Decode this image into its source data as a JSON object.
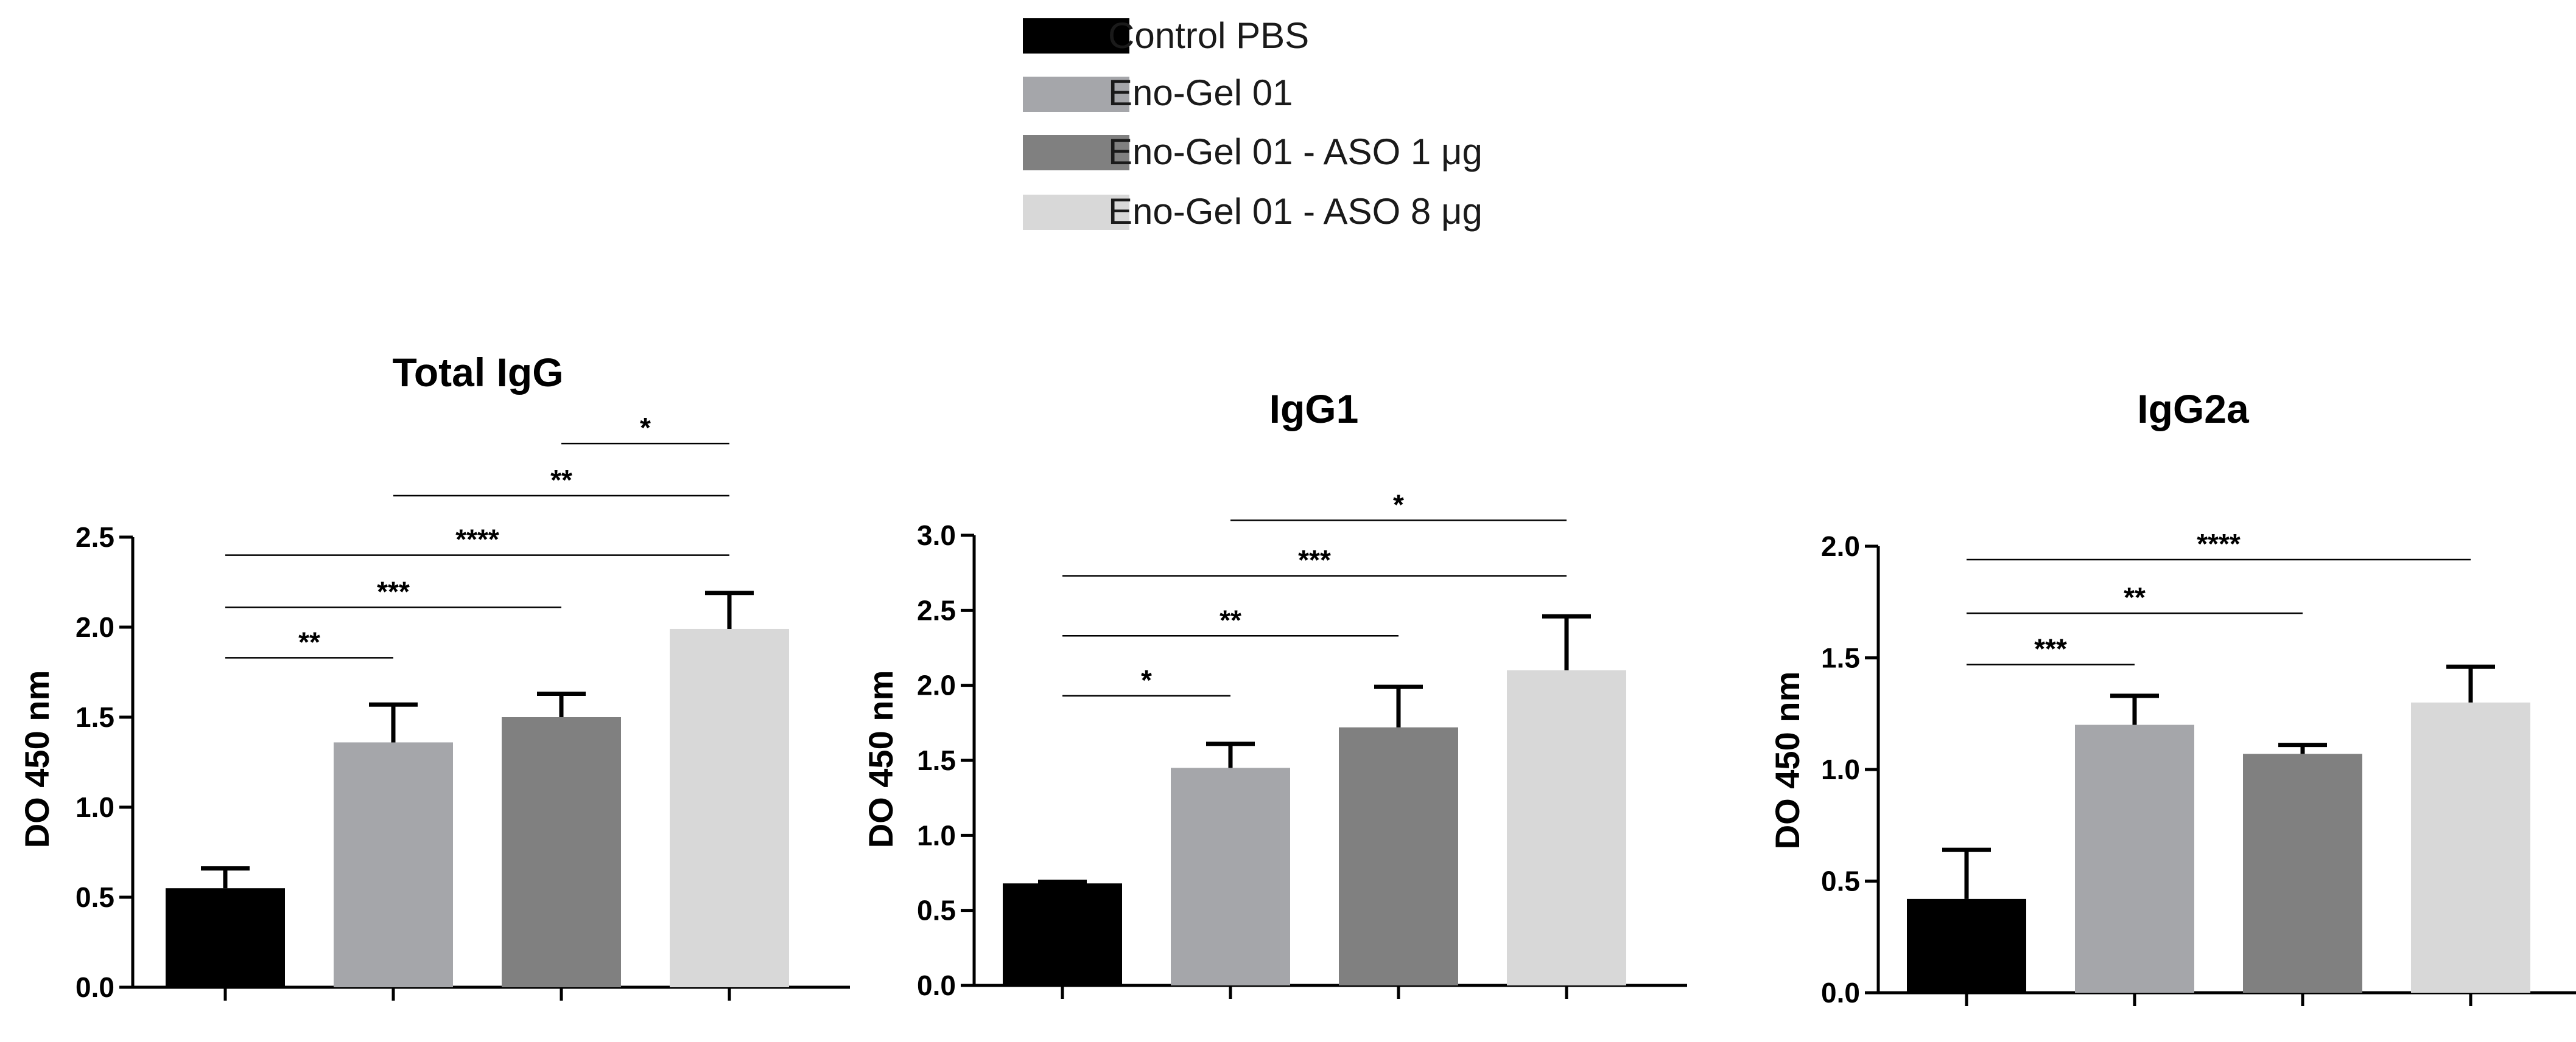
{
  "legend": {
    "items": [
      {
        "label": "Control PBS",
        "color": "#000000"
      },
      {
        "label": "Eno-Gel 01",
        "color": "#a5a6aa"
      },
      {
        "label": "Eno-Gel 01 - ASO 1 μg",
        "color": "#808080"
      },
      {
        "label": "Eno-Gel 01 - ASO 8 μg",
        "color": "#d8d8d8"
      }
    ]
  },
  "chart_data": [
    {
      "type": "bar",
      "title": "Total IgG",
      "ylabel": "DO 450 nm",
      "xlabel": "",
      "ylim": [
        0,
        2.5
      ],
      "yticks": [
        "0.0",
        "0.5",
        "1.0",
        "1.5",
        "2.0",
        "2.5"
      ],
      "categories": [
        "Control PBS",
        "Eno-Gel 01",
        "Eno-Gel 01 - ASO 1 μg",
        "Eno-Gel 01 - ASO 8 μg"
      ],
      "values": [
        0.55,
        1.36,
        1.5,
        1.99
      ],
      "errors": [
        0.11,
        0.21,
        0.13,
        0.2
      ],
      "significance": [
        {
          "from": 0,
          "to": 1,
          "label": "**",
          "y": 1.83
        },
        {
          "from": 0,
          "to": 2,
          "label": "***",
          "y": 2.11
        },
        {
          "from": 0,
          "to": 3,
          "label": "****",
          "y": 2.4
        },
        {
          "from": 1,
          "to": 3,
          "label": "**",
          "y": 2.73
        },
        {
          "from": 2,
          "to": 3,
          "label": "*",
          "y": 3.02
        }
      ]
    },
    {
      "type": "bar",
      "title": "IgG1",
      "ylabel": "DO 450 nm",
      "xlabel": "",
      "ylim": [
        0,
        3.0
      ],
      "yticks": [
        "0.0",
        "0.5",
        "1.0",
        "1.5",
        "2.0",
        "2.5",
        "3.0"
      ],
      "categories": [
        "Control PBS",
        "Eno-Gel 01",
        "Eno-Gel 01 - ASO 1 μg",
        "Eno-Gel 01 - ASO 8 μg"
      ],
      "values": [
        0.68,
        1.45,
        1.72,
        2.1
      ],
      "errors": [
        0.01,
        0.16,
        0.27,
        0.36
      ],
      "significance": [
        {
          "from": 0,
          "to": 1,
          "label": "*",
          "y": 1.93
        },
        {
          "from": 0,
          "to": 2,
          "label": "**",
          "y": 2.33
        },
        {
          "from": 0,
          "to": 3,
          "label": "***",
          "y": 2.73
        },
        {
          "from": 1,
          "to": 3,
          "label": "*",
          "y": 3.1
        }
      ]
    },
    {
      "type": "bar",
      "title": "IgG2a",
      "ylabel": "DO 450 nm",
      "xlabel": "",
      "ylim": [
        0,
        2.0
      ],
      "yticks": [
        "0.0",
        "0.5",
        "1.0",
        "1.5",
        "2.0"
      ],
      "categories": [
        "Control PBS",
        "Eno-Gel 01",
        "Eno-Gel 01 - ASO 1 μg",
        "Eno-Gel 01 - ASO 8 μg"
      ],
      "values": [
        0.42,
        1.2,
        1.07,
        1.3
      ],
      "errors": [
        0.22,
        0.13,
        0.04,
        0.16
      ],
      "significance": [
        {
          "from": 0,
          "to": 1,
          "label": "***",
          "y": 1.47
        },
        {
          "from": 0,
          "to": 2,
          "label": "**",
          "y": 1.7
        },
        {
          "from": 0,
          "to": 3,
          "label": "****",
          "y": 1.94
        }
      ]
    }
  ]
}
